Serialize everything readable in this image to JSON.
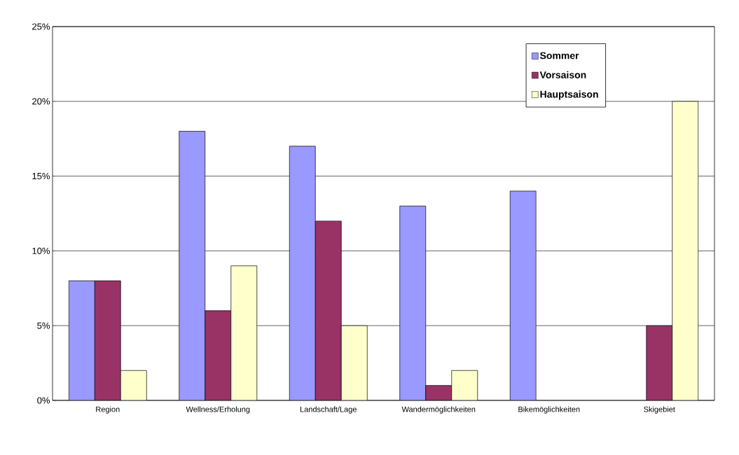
{
  "chart_data": {
    "type": "bar",
    "categories": [
      "Region",
      "Wellness/Erholung",
      "Landschaft/Lage",
      "Wandermöglichkeiten",
      "Bikemöglichkeiten",
      "Skigebiet"
    ],
    "series": [
      {
        "name": "Sommer",
        "color": "#9999ff",
        "values": [
          8,
          18,
          17,
          13,
          14,
          null
        ]
      },
      {
        "name": "Vorsaison",
        "color": "#993366",
        "values": [
          8,
          6,
          12,
          1,
          null,
          5
        ]
      },
      {
        "name": "Hauptsaison",
        "color": "#ffffcc",
        "values": [
          2,
          9,
          5,
          2,
          null,
          20
        ]
      }
    ],
    "ylim": [
      0,
      25
    ],
    "yticks": [
      {
        "value": 0,
        "label": "0%"
      },
      {
        "value": 5,
        "label": "5%"
      },
      {
        "value": 10,
        "label": "10%"
      },
      {
        "value": 15,
        "label": "15%"
      },
      {
        "value": 20,
        "label": "20%"
      },
      {
        "value": 25,
        "label": "25%"
      }
    ],
    "grid": "y",
    "legend": "top right"
  }
}
